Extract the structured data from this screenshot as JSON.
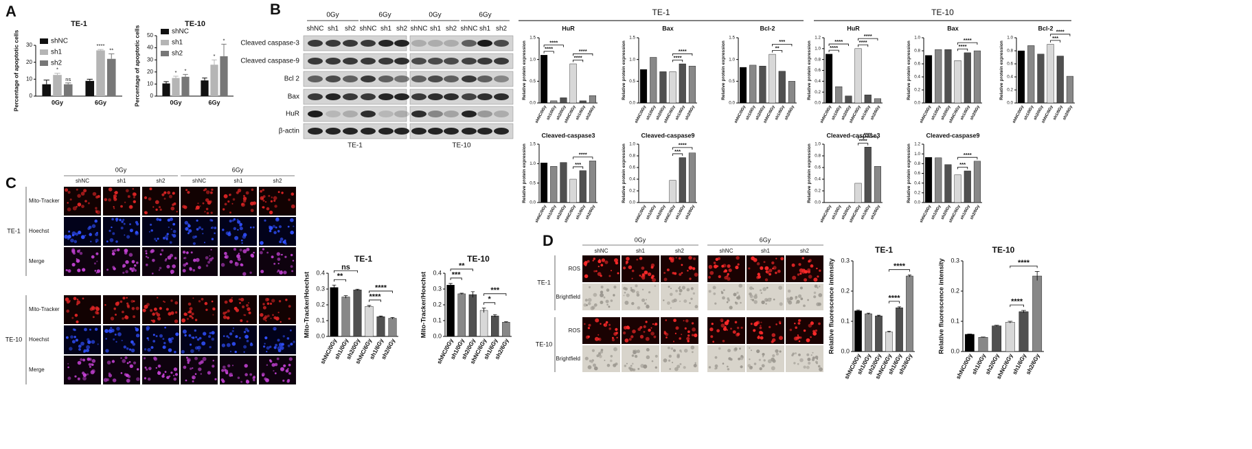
{
  "panel_labels": [
    "A",
    "B",
    "C",
    "D"
  ],
  "blot": {
    "doses": [
      "0Gy",
      "6Gy"
    ],
    "lanes": [
      "shNC",
      "sh1",
      "sh2",
      "shNC",
      "sh1",
      "sh2"
    ],
    "rows": [
      "Cleaved caspase-3",
      "Cleaved caspase-9",
      "Bcl 2",
      "Bax",
      "HuR",
      "β-actin"
    ],
    "cells": [
      "TE-1",
      "TE-10"
    ]
  },
  "section_headers": [
    "TE-1",
    "TE-10"
  ],
  "microscopy_c": {
    "doses": [
      "0Gy",
      "6Gy"
    ],
    "lanes": [
      "shNC",
      "sh1",
      "sh2"
    ],
    "stains": [
      "Mito-Tracker",
      "Hoechst",
      "Merge"
    ],
    "cells": [
      "TE-1",
      "TE-10"
    ]
  },
  "microscopy_d": {
    "doses": [
      "0Gy",
      "6Gy"
    ],
    "lanes": [
      "shNC",
      "sh1",
      "sh2"
    ],
    "channels": [
      "ROS",
      "Brightfield"
    ],
    "cells": [
      "TE-1",
      "TE-10"
    ]
  },
  "chart_data": [
    {
      "type": "grouped_bar",
      "title": "TE-1",
      "y_label": "Percentage of apoptotic cells",
      "categories": [
        "0Gy",
        "6Gy"
      ],
      "ylim": [
        0,
        30
      ],
      "yticks": [
        0,
        10,
        20,
        30
      ],
      "legend": "upper-left",
      "series": [
        {
          "name": "shNC",
          "color": "#111111",
          "values": [
            7,
            9
          ],
          "errors": [
            2.5,
            1
          ]
        },
        {
          "name": "sh1",
          "color": "#b5b5b5",
          "values": [
            12.5,
            27
          ],
          "errors": [
            1,
            0.5
          ],
          "labels": [
            "*",
            "****"
          ]
        },
        {
          "name": "sh2",
          "color": "#777777",
          "values": [
            7,
            22
          ],
          "errors": [
            0.8,
            3
          ],
          " labels": null,
          "labels": [
            "ns",
            "**"
          ]
        }
      ]
    },
    {
      "type": "grouped_bar",
      "title": "TE-10",
      "y_label": "Percentage of apoptotic cells",
      "categories": [
        "0Gy",
        "6Gy"
      ],
      "ylim": [
        0,
        50
      ],
      "yticks": [
        0,
        10,
        20,
        30,
        40,
        50
      ],
      "legend": "upper-left",
      "series": [
        {
          "name": "shNC",
          "color": "#111111",
          "values": [
            10.5,
            13
          ],
          "errors": [
            1.5,
            2
          ]
        },
        {
          "name": "sh1",
          "color": "#b5b5b5",
          "values": [
            15,
            26
          ],
          "errors": [
            1.5,
            4
          ],
          "labels": [
            "*",
            "*"
          ]
        },
        {
          "name": "sh2",
          "color": "#777777",
          "values": [
            16,
            33
          ],
          "errors": [
            2,
            10
          ],
          "labels": [
            "*",
            "*"
          ]
        }
      ]
    },
    {
      "type": "bar",
      "title": "HuR",
      "y_label": "Relative protein expression",
      "categories": [
        "shNC/0Gy",
        "sh1/0Gy",
        "sh2/0Gy",
        "shNC/6Gy",
        "sh1/6Gy",
        "sh2/6Gy"
      ],
      "colors": [
        "#000000",
        "#888888",
        "#505050",
        "#d8d8d8",
        "#505050",
        "#888888"
      ],
      "values": [
        1.1,
        0.05,
        0.12,
        0.9,
        0.05,
        0.17
      ],
      "ylim": [
        0,
        1.5
      ],
      "yticks": [
        {
          "value": 0,
          "label": "0.0"
        },
        0.5,
        {
          "value": 1,
          "label": "1.0"
        },
        1.5
      ],
      "comparisons": [
        {
          "pair": [
            0,
            1
          ],
          "label": "****"
        },
        {
          "pair": [
            0,
            2
          ],
          "label": "****"
        },
        {
          "pair": [
            3,
            4
          ],
          "label": "****"
        },
        {
          "pair": [
            3,
            5
          ],
          "label": "****"
        }
      ]
    },
    {
      "type": "bar",
      "title": "Bax",
      "y_label": "Relative protein expression",
      "categories": [
        "shNC/0Gy",
        "sh1/0Gy",
        "sh2/0Gy",
        "shNC/6Gy",
        "sh1/6Gy",
        "sh2/6Gy"
      ],
      "colors": [
        "#000000",
        "#888888",
        "#505050",
        "#d8d8d8",
        "#505050",
        "#888888"
      ],
      "values": [
        0.77,
        1.05,
        0.72,
        0.72,
        0.9,
        0.85
      ],
      "ylim": [
        0,
        1.5
      ],
      "yticks": [
        {
          "value": 0,
          "label": "0.0"
        },
        0.5,
        {
          "value": 1,
          "label": "1.0"
        },
        1.5
      ],
      "comparisons": [
        {
          "pair": [
            3,
            4
          ],
          "label": "****"
        },
        {
          "pair": [
            3,
            5
          ],
          "label": "****"
        }
      ]
    },
    {
      "type": "bar",
      "title": "Bcl-2",
      "y_label": "Relative protein expression",
      "categories": [
        "shNC/0Gy",
        "sh1/0Gy",
        "sh2/0Gy",
        "shNC/6Gy",
        "sh1/6Gy",
        "sh2/6Gy"
      ],
      "colors": [
        "#000000",
        "#888888",
        "#505050",
        "#d8d8d8",
        "#505050",
        "#888888"
      ],
      "values": [
        0.82,
        0.87,
        0.85,
        1.12,
        0.73,
        0.5
      ],
      "ylim": [
        0,
        1.5
      ],
      "yticks": [
        {
          "value": 0,
          "label": "0.0"
        },
        0.5,
        {
          "value": 1,
          "label": "1.0"
        },
        1.5
      ],
      "comparisons": [
        {
          "pair": [
            3,
            4
          ],
          "label": "**"
        },
        {
          "pair": [
            3,
            5
          ],
          "label": "***"
        }
      ]
    },
    {
      "type": "bar",
      "title": "HuR",
      "y_label": "Relative protein expression",
      "categories": [
        "shNC/0Gy",
        "sh1/0Gy",
        "sh2/0Gy",
        "shNC/6Gy",
        "sh1/6Gy",
        "sh2/6Gy"
      ],
      "colors": [
        "#000000",
        "#888888",
        "#505050",
        "#d8d8d8",
        "#505050",
        "#888888"
      ],
      "values": [
        0.9,
        0.3,
        0.13,
        1.0,
        0.15,
        0.08
      ],
      "ylim": [
        0,
        1.2
      ],
      "yticks": [
        {
          "value": 0,
          "label": "0.0"
        },
        0.2,
        0.4,
        0.6,
        0.8,
        {
          "value": 1,
          "label": "1.0"
        },
        1.2
      ],
      "comparisons": [
        {
          "pair": [
            0,
            1
          ],
          "label": "****"
        },
        {
          "pair": [
            0,
            2
          ],
          "label": "****"
        },
        {
          "pair": [
            3,
            4
          ],
          "label": "****"
        },
        {
          "pair": [
            3,
            5
          ],
          "label": "****"
        }
      ]
    },
    {
      "type": "bar",
      "title": "Bax",
      "y_label": "Relative protein expression",
      "categories": [
        "shNC/0Gy",
        "sh1/0Gy",
        "sh2/0Gy",
        "shNC/6Gy",
        "sh1/6Gy",
        "sh2/6Gy"
      ],
      "colors": [
        "#000000",
        "#888888",
        "#505050",
        "#d8d8d8",
        "#505050",
        "#888888"
      ],
      "values": [
        0.73,
        0.82,
        0.82,
        0.65,
        0.77,
        0.8
      ],
      "ylim": [
        0,
        1.0
      ],
      "yticks": [
        {
          "value": 0,
          "label": "0.0"
        },
        0.2,
        0.4,
        0.6,
        0.8,
        {
          "value": 1,
          "label": "1.0"
        }
      ],
      "comparisons": [
        {
          "pair": [
            3,
            4
          ],
          "label": "****"
        },
        {
          "pair": [
            3,
            5
          ],
          "label": "****"
        }
      ]
    },
    {
      "type": "bar",
      "title": "Bcl-2",
      "y_label": "Relative protein expression",
      "categories": [
        "shNC/0Gy",
        "sh1/0Gy",
        "sh2/0Gy",
        "shNC/6Gy",
        "sh1/6Gy",
        "sh2/6Gy"
      ],
      "colors": [
        "#000000",
        "#888888",
        "#505050",
        "#d8d8d8",
        "#505050",
        "#888888"
      ],
      "values": [
        0.8,
        0.88,
        0.75,
        0.9,
        0.72,
        0.41
      ],
      "ylim": [
        0,
        1.0
      ],
      "yticks": [
        {
          "value": 0,
          "label": "0.0"
        },
        0.2,
        0.4,
        0.6,
        0.8,
        {
          "value": 1,
          "label": "1.0"
        }
      ],
      "comparisons": [
        {
          "pair": [
            3,
            4
          ],
          "label": "***"
        },
        {
          "pair": [
            3,
            5
          ],
          "label": "****"
        }
      ]
    },
    {
      "type": "bar",
      "title": "Cleaved-caspase3",
      "y_label": "Relative protein expression",
      "categories": [
        "shNC/0Gy",
        "sh1/0Gy",
        "sh2/0Gy",
        "shNC/6Gy",
        "sh1/6Gy",
        "sh2/6Gy"
      ],
      "colors": [
        "#000000",
        "#888888",
        "#505050",
        "#d8d8d8",
        "#505050",
        "#888888"
      ],
      "values": [
        1.02,
        0.93,
        1.03,
        0.6,
        0.82,
        1.07
      ],
      "ylim": [
        0,
        1.5
      ],
      "yticks": [
        {
          "value": 0,
          "label": "0.0"
        },
        0.5,
        {
          "value": 1,
          "label": "1.0"
        },
        1.5
      ],
      "comparisons": [
        {
          "pair": [
            3,
            4
          ],
          "label": "***"
        },
        {
          "pair": [
            3,
            5
          ],
          "label": "****"
        }
      ]
    },
    {
      "type": "bar",
      "title": "Cleaved-caspase9",
      "y_label": "Relative protein expression",
      "categories": [
        "shNC/0Gy",
        "sh1/0Gy",
        "sh2/0Gy",
        "shNC/6Gy",
        "sh1/6Gy",
        "sh2/6Gy"
      ],
      "colors": [
        "#000000",
        "#888888",
        "#505050",
        "#d8d8d8",
        "#505050",
        "#888888"
      ],
      "values": [
        0,
        0,
        0,
        0.38,
        0.77,
        0.85
      ],
      "ylim": [
        0,
        1.0
      ],
      "yticks": [
        {
          "value": 0,
          "label": "0.0"
        },
        0.2,
        0.4,
        0.6,
        0.8,
        {
          "value": 1,
          "label": "1.0"
        }
      ],
      "comparisons": [
        {
          "pair": [
            3,
            4
          ],
          "label": "***"
        },
        {
          "pair": [
            3,
            5
          ],
          "label": "****"
        }
      ]
    },
    {
      "type": "bar",
      "title": "Cleaved-caspase3",
      "y_label": "Relative protein expression",
      "categories": [
        "shNC/0Gy",
        "sh1/0Gy",
        "sh2/0Gy",
        "shNC/6Gy",
        "sh1/6Gy",
        "sh2/6Gy"
      ],
      "colors": [
        "#000000",
        "#888888",
        "#505050",
        "#d8d8d8",
        "#505050",
        "#888888"
      ],
      "values": [
        0,
        0,
        0,
        0.33,
        0.95,
        0.62
      ],
      "ylim": [
        0,
        1.0
      ],
      "yticks": [
        {
          "value": 0,
          "label": "0.0"
        },
        0.2,
        0.4,
        0.6,
        0.8,
        {
          "value": 1,
          "label": "1.0"
        }
      ],
      "comparisons": [
        {
          "pair": [
            3,
            4
          ],
          "label": "****"
        },
        {
          "pair": [
            3,
            5
          ],
          "label": "****"
        }
      ]
    },
    {
      "type": "bar",
      "title": "Cleaved-caspase9",
      "y_label": "Relative protein expression",
      "categories": [
        "shNC/0Gy",
        "sh1/0Gy",
        "sh2/0Gy",
        "shNC/6Gy",
        "sh1/6Gy",
        "sh2/6Gy"
      ],
      "colors": [
        "#000000",
        "#888888",
        "#505050",
        "#d8d8d8",
        "#505050",
        "#888888"
      ],
      "values": [
        0.93,
        0.92,
        0.78,
        0.57,
        0.65,
        0.85
      ],
      "ylim": [
        0,
        1.2
      ],
      "yticks": [
        {
          "value": 0,
          "label": "0.0"
        },
        0.2,
        0.4,
        0.6,
        0.8,
        {
          "value": 1,
          "label": "1.0"
        },
        1.2
      ],
      "comparisons": [
        {
          "pair": [
            3,
            4
          ],
          "label": "***"
        },
        {
          "pair": [
            3,
            5
          ],
          "label": "****"
        }
      ]
    },
    {
      "type": "bar",
      "title": "TE-1",
      "y_label": "Mito-Tracker/Hoechst",
      "categories": [
        "shNC/0Gy",
        "sh1/0Gy",
        "sh2/0Gy",
        "shNC/6Gy",
        "sh1/6Gy",
        "sh2/6Gy"
      ],
      "colors": [
        "#000000",
        "#888888",
        "#505050",
        "#d8d8d8",
        "#505050",
        "#888888"
      ],
      "values": [
        0.31,
        0.25,
        0.295,
        0.19,
        0.125,
        0.115
      ],
      "errors": [
        0.015,
        0.008,
        0.004,
        0.006,
        0.004,
        0.005
      ],
      "ylim": [
        0,
        0.4
      ],
      "yticks": [
        {
          "value": 0,
          "label": "0.0"
        },
        0.1,
        0.2,
        0.3,
        0.4
      ],
      "comparisons": [
        {
          "pair": [
            0,
            1
          ],
          "label": "**"
        },
        {
          "pair": [
            0,
            2
          ],
          "label": "ns"
        },
        {
          "pair": [
            3,
            4
          ],
          "label": "****"
        },
        {
          "pair": [
            3,
            5
          ],
          "label": "****"
        }
      ]
    },
    {
      "type": "bar",
      "title": "TE-10",
      "y_label": "Mito-Tracker/Hoechst",
      "categories": [
        "shNC/0Gy",
        "sh1/0Gy",
        "sh2/0Gy",
        "shNC/6Gy",
        "sh1/6Gy",
        "sh2/6Gy"
      ],
      "colors": [
        "#000000",
        "#888888",
        "#505050",
        "#d8d8d8",
        "#505050",
        "#888888"
      ],
      "values": [
        0.325,
        0.27,
        0.265,
        0.165,
        0.13,
        0.09
      ],
      "errors": [
        0.01,
        0.004,
        0.018,
        0.014,
        0.008,
        0.003
      ],
      "ylim": [
        0,
        0.4
      ],
      "yticks": [
        {
          "value": 0,
          "label": "0.0"
        },
        0.1,
        0.2,
        0.3,
        0.4
      ],
      "comparisons": [
        {
          "pair": [
            0,
            1
          ],
          "label": "***"
        },
        {
          "pair": [
            0,
            2
          ],
          "label": "**"
        },
        {
          "pair": [
            3,
            4
          ],
          "label": "*"
        },
        {
          "pair": [
            3,
            5
          ],
          "label": "***"
        }
      ]
    },
    {
      "type": "bar",
      "title": "TE-1",
      "y_label": "Relative fluorescence intensity",
      "categories": [
        "shNC/0Gy",
        "sh1/0Gy",
        "sh2/0Gy",
        "shNC/6Gy",
        "sh1/6Gy",
        "sh2/6Gy"
      ],
      "colors": [
        "#000000",
        "#888888",
        "#505050",
        "#d8d8d8",
        "#505050",
        "#888888"
      ],
      "values": [
        0.135,
        0.125,
        0.118,
        0.065,
        0.145,
        0.25
      ],
      "errors": [
        0.002,
        0.002,
        0.002,
        0.002,
        0.003,
        0.003
      ],
      "ylim": [
        0,
        0.3
      ],
      "yticks": [
        {
          "value": 0,
          "label": "0.0"
        },
        0.1,
        0.2,
        0.3
      ],
      "comparisons": [
        {
          "pair": [
            3,
            4
          ],
          "label": "****"
        },
        {
          "pair": [
            3,
            5
          ],
          "label": "****"
        }
      ]
    },
    {
      "type": "bar",
      "title": "TE-10",
      "y_label": "Relative fluorescence intensity",
      "categories": [
        "shNC/0Gy",
        "sh1/0Gy",
        "sh2/0Gy",
        "shNC/6Gy",
        "sh1/6Gy",
        "sh2/6Gy"
      ],
      "colors": [
        "#000000",
        "#888888",
        "#505050",
        "#d8d8d8",
        "#505050",
        "#888888"
      ],
      "values": [
        0.057,
        0.047,
        0.085,
        0.097,
        0.132,
        0.25
      ],
      "errors": [
        0.001,
        0.001,
        0.002,
        0.003,
        0.004,
        0.015
      ],
      "ylim": [
        0,
        0.3
      ],
      "yticks": [
        {
          "value": 0,
          "label": "0.0"
        },
        0.1,
        0.2,
        0.3
      ],
      "comparisons": [
        {
          "pair": [
            3,
            4
          ],
          "label": "****"
        },
        {
          "pair": [
            3,
            5
          ],
          "label": "****"
        }
      ]
    }
  ]
}
